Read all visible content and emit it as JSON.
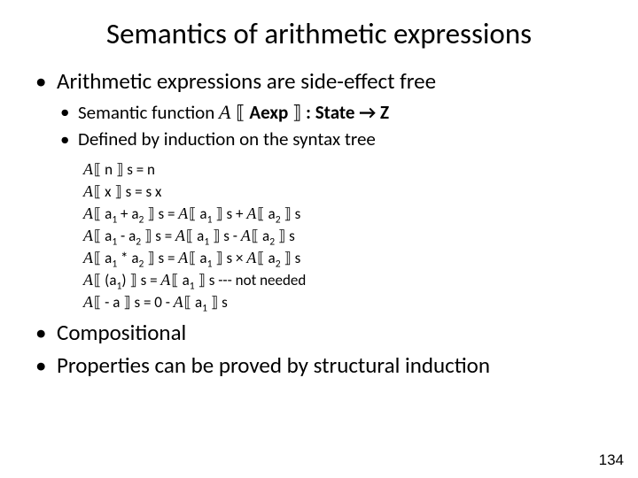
{
  "title": "Semantics of arithmetic expressions",
  "b1": "Arithmetic expressions are side-effect free",
  "b2_pre": "Semantic function ",
  "b2_A": "A",
  "b2_mid1": " ",
  "b2_br1": "⟦",
  "b2_aexp": " Aexp ",
  "b2_br2": "⟧",
  "b2_rest": " : State ",
  "b2_arrow": "→",
  "b2_Z": " Z",
  "b3": "Defined by induction on the syntax tree",
  "r1": {
    "A": "A",
    "lb": "⟦",
    "body": " n ",
    "rb": "⟧",
    "tail": " s = n"
  },
  "r2": {
    "A": "A",
    "lb": "⟦",
    "body": " x ",
    "rb": "⟧",
    "tail": " s = s x"
  },
  "r3": {
    "A": "A",
    "lb": "⟦",
    "body": " a",
    "sub1": "1",
    "mid": " + a",
    "sub2": "2",
    "sp": " ",
    "rb": "⟧",
    "eq": " s = ",
    "A2": "A",
    "lb2": "⟦",
    "b2": " a",
    "s21": "1",
    "sp2": " ",
    "rb2": "⟧",
    "m2": " s  + ",
    "A3": "A",
    "lb3": "⟦",
    "b3": " a",
    "s31": "2",
    "sp3": " ",
    "rb3": "⟧",
    "m3": " s"
  },
  "r4": {
    "A": "A",
    "lb": "⟦",
    "body": " a",
    "sub1": "1",
    "mid": " - a",
    "sub2": "2",
    "sp": " ",
    "rb": "⟧",
    "eq": " s = ",
    "A2": "A",
    "lb2": "⟦",
    "b2": " a",
    "s21": "1",
    "sp2": " ",
    "rb2": "⟧",
    "m2": " s - ",
    "A3": "A",
    "lb3": "⟦",
    "b3": " a",
    "s31": "2",
    "sp3": " ",
    "rb3": "⟧",
    "m3": " s"
  },
  "r5": {
    "A": "A",
    "lb": "⟦",
    "body": " a",
    "sub1": "1",
    "mid": " * a",
    "sub2": "2",
    "sp": " ",
    "rb": "⟧",
    "eq": " s = ",
    "A2": "A",
    "lb2": "⟦",
    "b2": " a",
    "s21": "1",
    "sp2": " ",
    "rb2": "⟧",
    "m2": " s × ",
    "A3": "A",
    "lb3": "⟦",
    "b3": " a",
    "s31": "2",
    "sp3": " ",
    "rb3": "⟧",
    "m3": " s"
  },
  "r6": {
    "A": "A",
    "lb": "⟦",
    "body": " (a",
    "sub1": "1",
    "mid": ") ",
    "rb": "⟧",
    "eq": " s = ",
    "A2": "A",
    "lb2": "⟦",
    "b2": " a",
    "s21": "1",
    "sp2": " ",
    "rb2": "⟧",
    "m2": " s  --- not needed"
  },
  "r7": {
    "A": "A",
    "lb": "⟦",
    "body": " - a ",
    "rb": "⟧",
    "eq": " s = 0 - ",
    "A2": "A",
    "lb2": "⟦",
    "b2": " a",
    "s21": "1",
    "sp2": " ",
    "rb2": "⟧",
    "m2": " s"
  },
  "b4": "Compositional",
  "b5": "Properties can be proved by structural induction",
  "pagenum": "134"
}
